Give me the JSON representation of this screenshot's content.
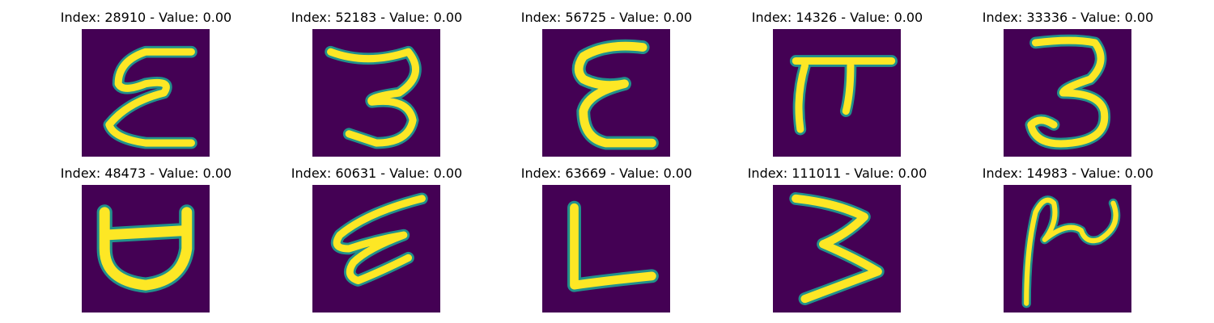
{
  "images": [
    {
      "title": "Index: 28910 - Value: 0.00",
      "glyph": "epsilon-stroke"
    },
    {
      "title": "Index: 52183 - Value: 0.00",
      "glyph": "three-stroke"
    },
    {
      "title": "Index: 56725 - Value: 0.00",
      "glyph": "epsilon-stroke"
    },
    {
      "title": "Index: 14326 - Value: 0.00",
      "glyph": "pi-stroke"
    },
    {
      "title": "Index: 33336 - Value: 0.00",
      "glyph": "three-stroke"
    },
    {
      "title": "Index: 48473 - Value: 0.00",
      "glyph": "d-rotated-stroke"
    },
    {
      "title": "Index: 60631 - Value: 0.00",
      "glyph": "epsilon-stroke"
    },
    {
      "title": "Index: 63669 - Value: 0.00",
      "glyph": "l-stroke"
    },
    {
      "title": "Index: 111011 - Value: 0.00",
      "glyph": "three-stroke"
    },
    {
      "title": "Index: 14983 - Value: 0.00",
      "glyph": "rho-two-stroke"
    }
  ],
  "colors": {
    "background": "#440154",
    "stroke_core": "#fde725",
    "stroke_edge": "#21918c"
  }
}
